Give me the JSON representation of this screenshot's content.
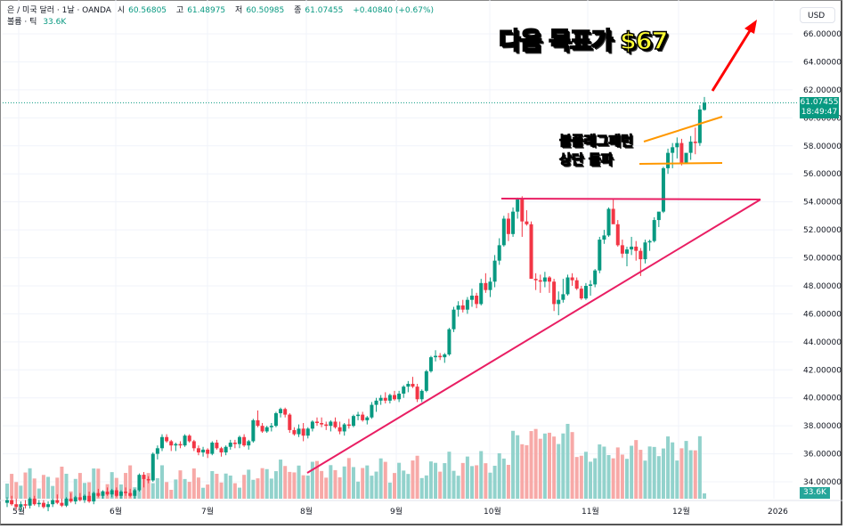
{
  "header": {
    "symbol_line": "은 / 미국 달러 · 1날 · OANDA",
    "open_label": "시",
    "open": "60.56805",
    "high_label": "고",
    "high": "61.48975",
    "low_label": "저",
    "low": "60.50985",
    "close_label": "종",
    "close": "61.07455",
    "change": "+0.40840 (+0.67%)",
    "volume_label": "볼륨 · 틱",
    "volume": "33.6K"
  },
  "price_scale": {
    "currency_button": "USD",
    "ticks": [
      "66.00000",
      "64.00000",
      "62.00000",
      "60.00000",
      "58.00000",
      "56.00000",
      "54.00000",
      "52.00000",
      "50.00000",
      "48.00000",
      "46.00000",
      "44.00000",
      "42.00000",
      "40.00000",
      "38.00000",
      "36.00000",
      "34.00000"
    ],
    "last_price": "61.07455",
    "countdown": "18:49:47",
    "volume_tag": "33.6K"
  },
  "time_axis": {
    "labels": [
      {
        "text": "5월",
        "x": 18
      },
      {
        "text": "6월",
        "x": 127
      },
      {
        "text": "7월",
        "x": 230
      },
      {
        "text": "8월",
        "x": 341
      },
      {
        "text": "9월",
        "x": 442
      },
      {
        "text": "10월",
        "x": 547
      },
      {
        "text": "11월",
        "x": 657
      },
      {
        "text": "12월",
        "x": 759
      },
      {
        "text": "2026",
        "x": 866
      }
    ]
  },
  "annotations": {
    "target_text": "다음 목표가 $67",
    "flag_text_1": "불플래그패턴",
    "flag_text_2": "상단 돌파"
  },
  "colors": {
    "up": "#089981",
    "down": "#f23645",
    "vol_up": "#92d2cc",
    "vol_down": "#f7a9a7",
    "trendline": "#e91e63",
    "flag": "#ff9800",
    "arrow": "#ff0000",
    "grid": "#f0f3fa"
  },
  "chart_data": {
    "type": "candlestick",
    "title": "은 / 미국 달러 · 1날 · OANDA",
    "xlabel": "",
    "ylabel": "USD",
    "ylim": [
      33,
      67
    ],
    "x_ticks": [
      "5월",
      "6월",
      "7월",
      "8월",
      "9월",
      "10월",
      "11월",
      "12월",
      "2026"
    ],
    "last": {
      "open": 60.56805,
      "high": 61.48975,
      "low": 60.50985,
      "close": 61.07455,
      "volume": "33.6K"
    },
    "ohlc": [
      [
        32.5,
        32.9,
        32.2,
        32.7
      ],
      [
        32.7,
        33.0,
        32.3,
        32.4
      ],
      [
        32.4,
        32.8,
        32.0,
        32.2
      ],
      [
        32.2,
        32.6,
        31.9,
        32.4
      ],
      [
        32.4,
        32.7,
        32.1,
        32.3
      ],
      [
        32.3,
        32.9,
        32.1,
        32.8
      ],
      [
        32.8,
        33.0,
        32.3,
        32.4
      ],
      [
        32.4,
        32.7,
        32.2,
        32.5
      ],
      [
        32.5,
        32.7,
        32.1,
        32.2
      ],
      [
        32.2,
        32.6,
        31.9,
        32.4
      ],
      [
        32.4,
        32.8,
        32.2,
        32.7
      ],
      [
        32.7,
        33.1,
        32.4,
        32.5
      ],
      [
        32.5,
        32.8,
        32.2,
        32.3
      ],
      [
        32.3,
        32.9,
        32.2,
        32.8
      ],
      [
        32.8,
        33.2,
        32.5,
        32.6
      ],
      [
        32.6,
        33.0,
        32.4,
        32.9
      ],
      [
        32.9,
        33.2,
        32.6,
        32.7
      ],
      [
        32.7,
        33.1,
        32.5,
        33.0
      ],
      [
        33.0,
        33.3,
        32.5,
        32.6
      ],
      [
        32.6,
        33.3,
        32.4,
        33.2
      ],
      [
        33.2,
        33.5,
        32.9,
        33.0
      ],
      [
        33.0,
        33.4,
        32.8,
        33.3
      ],
      [
        33.3,
        33.6,
        33.0,
        33.1
      ],
      [
        33.1,
        33.5,
        32.9,
        33.4
      ],
      [
        33.4,
        33.6,
        32.9,
        33.0
      ],
      [
        33.0,
        33.4,
        32.8,
        33.3
      ],
      [
        33.3,
        33.6,
        33.0,
        33.2
      ],
      [
        33.2,
        33.5,
        32.9,
        33.0
      ],
      [
        33.0,
        33.5,
        32.8,
        33.4
      ],
      [
        33.4,
        34.6,
        33.3,
        34.5
      ],
      [
        34.5,
        34.7,
        33.6,
        34.2
      ],
      [
        34.2,
        34.4,
        33.9,
        34.1
      ],
      [
        34.1,
        36.1,
        34.0,
        36.0
      ],
      [
        36.0,
        36.6,
        35.6,
        36.4
      ],
      [
        36.4,
        37.4,
        36.2,
        37.2
      ],
      [
        37.2,
        37.4,
        36.8,
        36.9
      ],
      [
        36.9,
        37.0,
        36.2,
        36.6
      ],
      [
        36.6,
        36.8,
        36.2,
        36.7
      ],
      [
        36.7,
        36.9,
        36.4,
        36.6
      ],
      [
        36.6,
        37.4,
        36.5,
        37.3
      ],
      [
        37.3,
        37.4,
        36.8,
        36.9
      ],
      [
        36.9,
        37.0,
        36.2,
        36.4
      ],
      [
        36.4,
        36.6,
        35.9,
        36.1
      ],
      [
        36.1,
        36.5,
        35.8,
        36.3
      ],
      [
        36.3,
        36.4,
        35.7,
        36.0
      ],
      [
        36.0,
        36.9,
        35.9,
        36.8
      ],
      [
        36.8,
        37.0,
        36.3,
        36.4
      ],
      [
        36.4,
        36.5,
        35.8,
        36.1
      ],
      [
        36.1,
        36.6,
        35.9,
        36.5
      ],
      [
        36.5,
        37.0,
        36.3,
        36.8
      ],
      [
        36.8,
        37.0,
        36.4,
        36.7
      ],
      [
        36.7,
        37.3,
        36.4,
        37.2
      ],
      [
        37.2,
        37.4,
        36.5,
        36.6
      ],
      [
        36.6,
        37.0,
        36.3,
        36.9
      ],
      [
        36.9,
        38.5,
        36.8,
        38.4
      ],
      [
        38.4,
        39.1,
        37.9,
        38.0
      ],
      [
        38.0,
        38.2,
        37.5,
        37.6
      ],
      [
        37.6,
        38.0,
        37.5,
        37.9
      ],
      [
        37.9,
        38.2,
        37.6,
        38.0
      ],
      [
        38.0,
        39.0,
        37.9,
        38.9
      ],
      [
        38.9,
        39.3,
        38.6,
        39.2
      ],
      [
        39.2,
        39.3,
        38.6,
        38.8
      ],
      [
        38.8,
        38.9,
        37.5,
        37.7
      ],
      [
        37.7,
        37.9,
        37.3,
        37.4
      ],
      [
        37.4,
        38.1,
        37.2,
        37.8
      ],
      [
        37.8,
        38.2,
        36.9,
        37.3
      ],
      [
        37.3,
        37.9,
        37.1,
        37.8
      ],
      [
        37.8,
        38.4,
        37.6,
        38.3
      ],
      [
        38.3,
        38.6,
        38.0,
        38.2
      ],
      [
        38.2,
        38.6,
        37.9,
        38.1
      ],
      [
        38.1,
        38.3,
        37.7,
        38.0
      ],
      [
        38.0,
        38.4,
        37.6,
        38.3
      ],
      [
        38.3,
        38.6,
        37.8,
        37.9
      ],
      [
        37.9,
        38.3,
        37.4,
        37.6
      ],
      [
        37.6,
        38.2,
        37.3,
        38.1
      ],
      [
        38.1,
        38.5,
        37.8,
        38.0
      ],
      [
        38.0,
        38.8,
        37.9,
        38.7
      ],
      [
        38.7,
        39.0,
        38.4,
        38.8
      ],
      [
        38.8,
        39.0,
        38.3,
        38.4
      ],
      [
        38.4,
        38.7,
        38.1,
        38.6
      ],
      [
        38.6,
        39.7,
        38.5,
        39.5
      ],
      [
        39.5,
        40.0,
        39.0,
        39.8
      ],
      [
        39.8,
        40.2,
        39.5,
        40.0
      ],
      [
        40.0,
        40.4,
        39.6,
        39.8
      ],
      [
        39.8,
        40.3,
        39.6,
        40.2
      ],
      [
        40.2,
        40.5,
        39.8,
        39.9
      ],
      [
        39.9,
        40.5,
        39.7,
        40.3
      ],
      [
        40.3,
        40.9,
        40.0,
        40.8
      ],
      [
        40.8,
        41.2,
        40.4,
        41.0
      ],
      [
        41.0,
        41.5,
        40.7,
        40.8
      ],
      [
        40.8,
        41.0,
        39.7,
        39.9
      ],
      [
        39.9,
        40.6,
        39.7,
        40.5
      ],
      [
        40.5,
        42.0,
        40.4,
        41.9
      ],
      [
        41.9,
        43.0,
        41.8,
        42.9
      ],
      [
        42.9,
        43.4,
        42.6,
        43.0
      ],
      [
        43.0,
        43.2,
        42.7,
        42.9
      ],
      [
        42.9,
        43.2,
        42.5,
        43.1
      ],
      [
        43.1,
        45.0,
        43.0,
        44.9
      ],
      [
        44.9,
        46.5,
        44.7,
        46.3
      ],
      [
        46.3,
        46.9,
        45.8,
        46.6
      ],
      [
        46.6,
        47.0,
        46.1,
        46.3
      ],
      [
        46.3,
        47.2,
        46.0,
        47.0
      ],
      [
        47.0,
        47.8,
        46.5,
        47.3
      ],
      [
        47.3,
        47.5,
        46.4,
        46.7
      ],
      [
        46.7,
        48.5,
        46.6,
        48.2
      ],
      [
        48.2,
        48.9,
        47.5,
        47.7
      ],
      [
        47.7,
        48.6,
        47.2,
        48.3
      ],
      [
        48.3,
        50.2,
        47.9,
        49.8
      ],
      [
        49.8,
        51.4,
        49.5,
        50.9
      ],
      [
        50.9,
        53.0,
        50.8,
        52.8
      ],
      [
        52.8,
        53.2,
        51.2,
        51.7
      ],
      [
        51.7,
        53.6,
        51.5,
        53.3
      ],
      [
        53.3,
        54.3,
        52.8,
        54.2
      ],
      [
        54.2,
        54.4,
        51.5,
        52.6
      ],
      [
        52.6,
        53.4,
        52.3,
        52.4
      ],
      [
        52.4,
        52.6,
        49.7,
        48.5
      ],
      [
        48.5,
        48.9,
        47.7,
        48.4
      ],
      [
        48.4,
        48.8,
        47.5,
        48.3
      ],
      [
        48.3,
        49.0,
        47.9,
        48.6
      ],
      [
        48.6,
        48.7,
        47.5,
        48.3
      ],
      [
        48.3,
        48.5,
        46.2,
        46.7
      ],
      [
        46.7,
        47.6,
        45.9,
        47.0
      ],
      [
        47.0,
        48.5,
        46.8,
        47.4
      ],
      [
        47.4,
        48.8,
        47.3,
        48.6
      ],
      [
        48.6,
        48.9,
        48.0,
        48.4
      ],
      [
        48.4,
        48.6,
        47.7,
        47.8
      ],
      [
        47.8,
        48.0,
        47.0,
        47.1
      ],
      [
        47.1,
        48.2,
        47.0,
        48.0
      ],
      [
        48.0,
        48.4,
        47.3,
        48.1
      ],
      [
        48.1,
        49.2,
        47.9,
        49.1
      ],
      [
        49.1,
        51.5,
        48.9,
        51.3
      ],
      [
        51.3,
        52.0,
        51.0,
        51.6
      ],
      [
        51.6,
        53.6,
        51.5,
        53.5
      ],
      [
        53.5,
        54.2,
        52.8,
        52.4
      ],
      [
        52.4,
        52.7,
        50.8,
        50.9
      ],
      [
        50.9,
        51.3,
        50.0,
        50.3
      ],
      [
        50.3,
        50.8,
        49.4,
        50.6
      ],
      [
        50.6,
        51.5,
        50.2,
        50.8
      ],
      [
        50.8,
        51.2,
        49.8,
        50.5
      ],
      [
        50.5,
        50.7,
        48.7,
        49.9
      ],
      [
        49.9,
        51.3,
        49.6,
        51.1
      ],
      [
        51.1,
        51.3,
        50.5,
        51.2
      ],
      [
        51.2,
        52.9,
        51.1,
        52.7
      ],
      [
        52.7,
        53.0,
        52.2,
        53.3
      ],
      [
        53.3,
        56.5,
        53.2,
        56.4
      ],
      [
        56.4,
        57.8,
        56.0,
        57.5
      ],
      [
        57.5,
        58.2,
        56.4,
        57.9
      ],
      [
        57.9,
        58.6,
        57.1,
        58.2
      ],
      [
        58.2,
        58.5,
        56.6,
        56.8
      ],
      [
        56.8,
        57.3,
        56.9,
        57.5
      ],
      [
        57.5,
        58.7,
        57.0,
        58.3
      ],
      [
        58.3,
        59.3,
        57.4,
        58.2
      ],
      [
        58.2,
        60.9,
        58.0,
        60.6
      ],
      [
        60.56805,
        61.48975,
        60.50985,
        61.07455
      ]
    ],
    "volume_up": "teal",
    "volume_down": "salmon",
    "annotations": [
      {
        "type": "ascending_triangle",
        "resistance": 54.2,
        "support_from": [
          "2025-08",
          "34.9"
        ],
        "support_to": [
          "2025-12-end",
          "54.2"
        ]
      },
      {
        "type": "bull_flag",
        "upper": [
          58.0,
          60.1
        ],
        "lower": [
          56.8,
          56.8
        ],
        "label": "불플래그패턴 상단 돌파"
      },
      {
        "type": "arrow_target",
        "label": "다음 목표가 $67",
        "target": 67
      }
    ]
  }
}
